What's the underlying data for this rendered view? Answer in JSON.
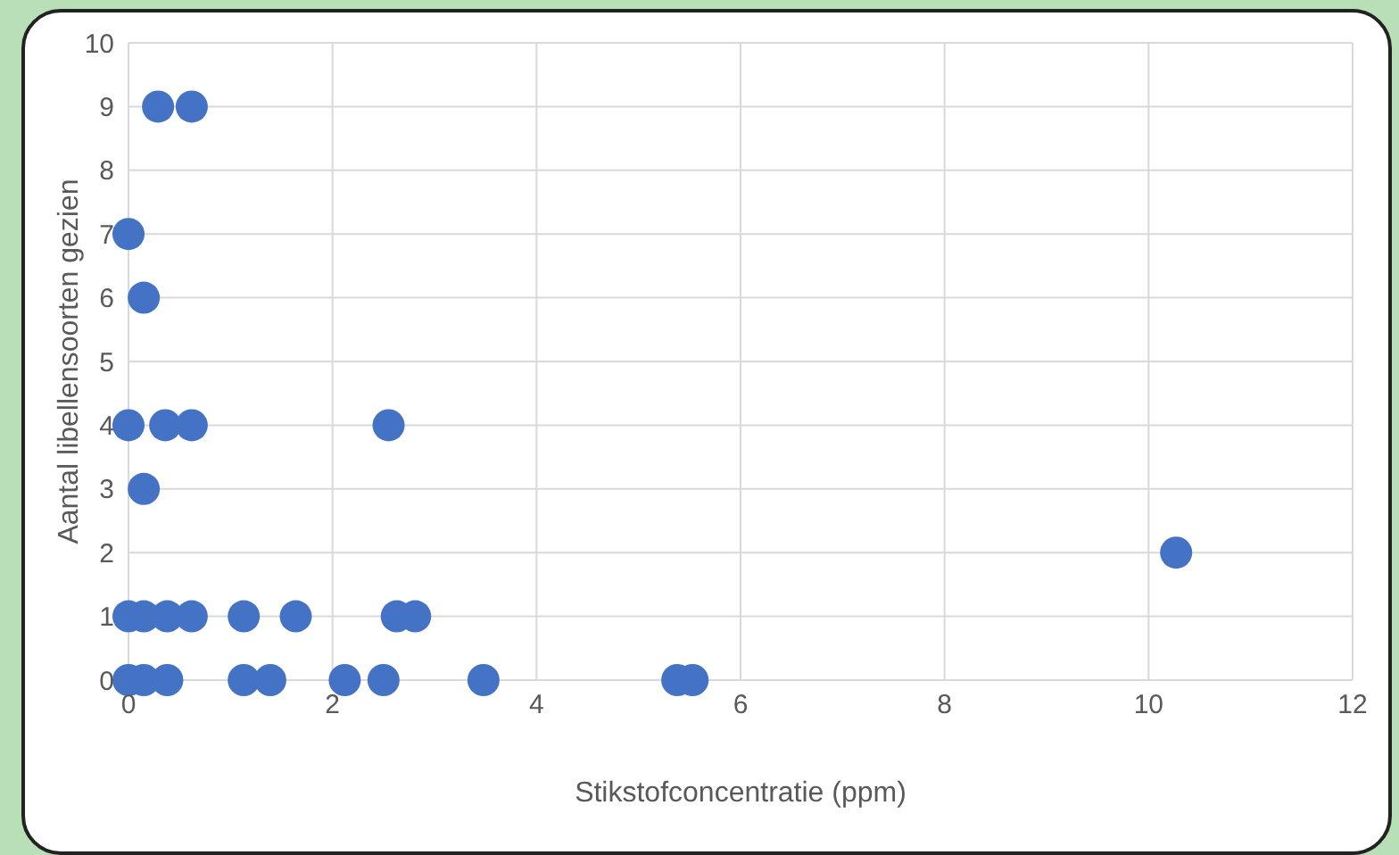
{
  "chart_data": {
    "type": "scatter",
    "xlabel": "Stikstofconcentratie (ppm)",
    "ylabel": "Aantal libellensoorten gezien",
    "x": [
      0.29,
      0.62,
      0,
      0.15,
      0,
      0.36,
      0.62,
      2.55,
      0.15,
      10.27,
      0,
      0.15,
      0.31,
      0.38,
      0.62,
      1.13,
      1.64,
      2.63,
      2.81,
      5.53,
      5.38,
      3.48,
      2.5,
      2.12,
      1.39,
      1.13,
      0.38,
      0.15,
      0
    ],
    "series": [
      {
        "color": "#4472c4",
        "values": [
          9,
          9,
          7,
          6,
          4,
          4,
          4,
          4,
          3,
          2,
          1,
          1,
          null,
          1,
          1,
          1,
          1,
          1,
          1,
          0,
          0,
          0,
          0,
          0,
          0,
          0,
          0,
          0,
          0
        ]
      }
    ],
    "xlim": [
      0,
      12
    ],
    "xticks": [
      0,
      2,
      4,
      6,
      8,
      10,
      12
    ],
    "ylim": [
      0,
      10
    ],
    "yticks": [
      0,
      1,
      2,
      3,
      4,
      5,
      6,
      7,
      8,
      9,
      10
    ],
    "grid": true,
    "marker": "circle",
    "legend": false
  }
}
